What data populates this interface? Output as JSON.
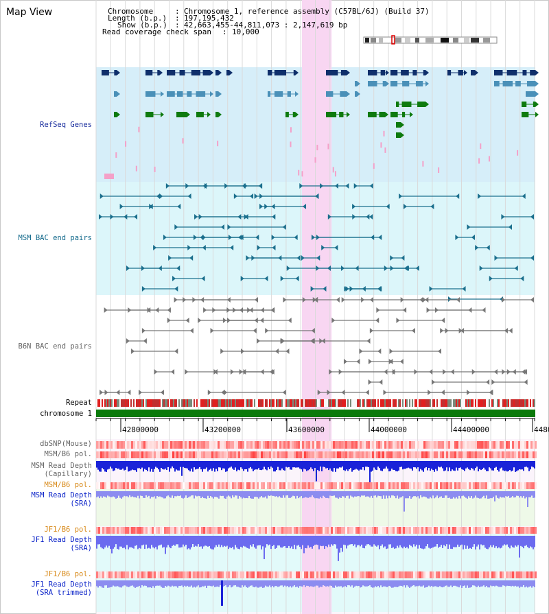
{
  "page": {
    "title": "Map View"
  },
  "header": {
    "chromosome_label": "Chromosome",
    "chromosome_value": "Chromosome 1, reference assembly (C57BL/6J) (Build 37)",
    "length_label": "Length (b.p.)",
    "length_value": "197,195,432",
    "show_label": "Show (b.p.)",
    "show_value": "42,663,455-44,811,073 : 2,147,619 bp",
    "coverage_label": "Read coverage check span",
    "coverage_value": "10,000"
  },
  "tracks": {
    "refseq": "RefSeq Genes",
    "msm_bac": "MSM BAC end pairs",
    "b6n_bac": "B6N BAC end pairs",
    "repeat": "Repeat",
    "chromosome": "chromosome 1",
    "dbsnp": "dbSNP(Mouse)",
    "msm_b6_pol": "MSM/B6 pol.",
    "msm_depth_cap_1": "MSM Read Depth",
    "msm_depth_cap_2": "(Capillary)",
    "msm_b6_pol_2": "MSM/B6 pol.",
    "msm_depth_sra_1": "MSM Read Depth",
    "msm_depth_sra_2": "(SRA)",
    "jf1_b6_pol": "JF1/B6 pol.",
    "jf1_depth_sra_1": "JF1 Read Depth",
    "jf1_depth_sra_2": "(SRA)",
    "jf1_b6_pol_2": "JF1/B6 pol.",
    "jf1_depth_trim_1": "JF1 Read Depth",
    "jf1_depth_trim_2": "(SRA trimmed)"
  },
  "ruler": {
    "start_bp": 42663455,
    "end_bp": 44811073,
    "ticks": [
      "42800000",
      "43200000",
      "43600000",
      "44000000",
      "44400000",
      "4480"
    ]
  },
  "highlight": {
    "start_bp": 43670000,
    "end_bp": 43815000
  },
  "colors": {
    "highlight": "#f8d6f2",
    "refseq_bg": "#d6eef9",
    "msm_bg": "#dcf6fa",
    "gene_navy": "#0f2f6b",
    "gene_teal": "#4a90b8",
    "gene_green": "#0e7a0e",
    "bac_msm": "#1b6f8d",
    "bac_b6n": "#777777",
    "chromosome_bar": "#0b7a0b",
    "depth_blue": "#1a23d8",
    "depth_light": "#8c8cf0"
  }
}
